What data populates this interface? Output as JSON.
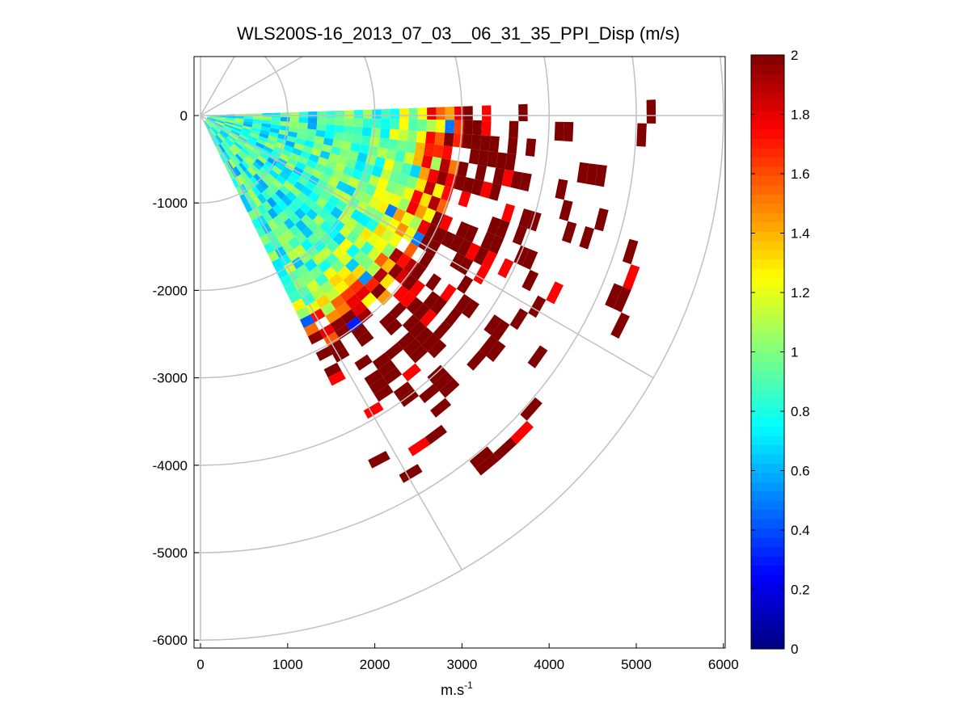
{
  "chart_data": {
    "type": "heatmap",
    "title": "WLS200S-16_2013_07_03__06_31_35_PPI_Disp (m/s)",
    "xlabel": "m.s",
    "xlabel_sup": "-1",
    "ylabel": "",
    "xlim": [
      -50,
      6000
    ],
    "ylim": [
      -6100,
      650
    ],
    "x_ticks": [
      0,
      1000,
      2000,
      3000,
      4000,
      5000,
      6000
    ],
    "x_tick_labels": [
      "0",
      "1000",
      "2000",
      "3000",
      "4000",
      "5000",
      "6000"
    ],
    "y_ticks": [
      0,
      -1000,
      -2000,
      -3000,
      -4000,
      -5000,
      -6000
    ],
    "y_tick_labels": [
      "0",
      "-1000",
      "-2000",
      "-3000",
      "-4000",
      "-5000",
      "-6000"
    ],
    "colorbar": {
      "colormap": "jet",
      "range": [
        0,
        2
      ],
      "ticks": [
        0,
        0.2,
        0.4,
        0.6,
        0.8,
        1,
        1.2,
        1.4,
        1.6,
        1.8,
        2
      ],
      "tick_labels": [
        "0",
        "0.2",
        "0.4",
        "0.6",
        "0.8",
        "1",
        "1.2",
        "1.4",
        "1.6",
        "1.8",
        "2"
      ]
    },
    "polar_grid": {
      "radii": [
        1000,
        2000,
        3000,
        4000,
        5000,
        6000
      ],
      "spoke_angles_deg": [
        0,
        -30,
        -60,
        -90,
        30,
        60,
        90
      ]
    },
    "scan": {
      "azimuth_start_deg": -64,
      "azimuth_end_deg": 2,
      "azimuth_step_deg": 3,
      "range_start": 80,
      "range_step": 105,
      "range_end": 5400
    },
    "radial_profile": [
      {
        "r": 0,
        "value": 0.85
      },
      {
        "r": 1500,
        "value": 0.82
      },
      {
        "r": 2000,
        "value": 0.9
      },
      {
        "r": 2400,
        "value": 1.1
      },
      {
        "r": 2700,
        "value": 1.5
      },
      {
        "r": 3000,
        "value": 2
      },
      {
        "r": 5400,
        "value": 2
      }
    ]
  }
}
